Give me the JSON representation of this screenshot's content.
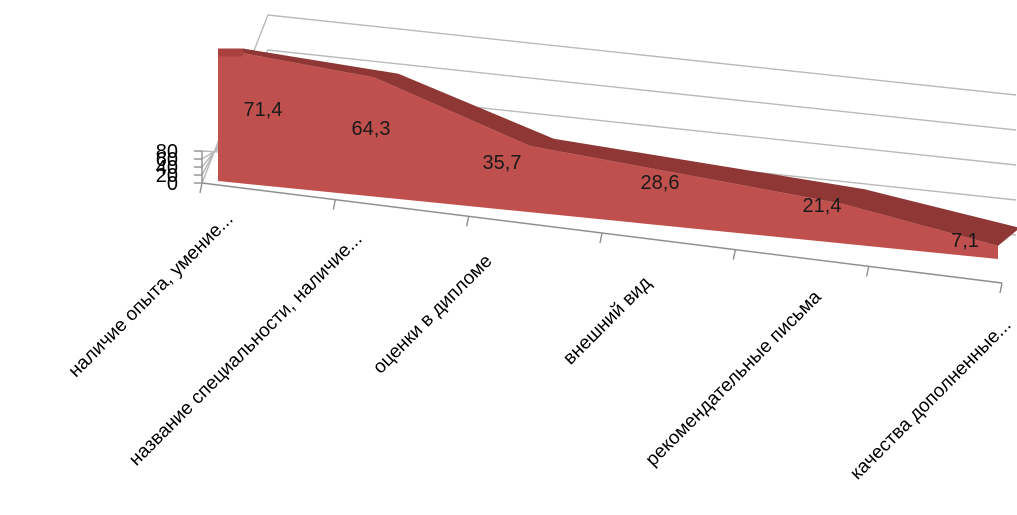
{
  "chart_data": {
    "type": "area",
    "three_d": true,
    "categories": [
      "наличие опыта, умение...",
      "название специальности, наличие...",
      "оценки в дипломе",
      "внешний вид",
      "рекомендательные письма",
      "качества дополненные..."
    ],
    "series": [
      {
        "values": [
          71.4,
          64.3,
          35.7,
          28.6,
          21.4,
          7.1
        ],
        "data_labels": [
          "71,4",
          "64,3",
          "35,7",
          "28,6",
          "21,4",
          "7,1"
        ],
        "color": "#c0504d"
      }
    ],
    "y_ticks": [
      "0",
      "20",
      "40",
      "60",
      "80"
    ],
    "ylim": [
      0,
      80
    ],
    "grid": true,
    "legend": "none"
  }
}
